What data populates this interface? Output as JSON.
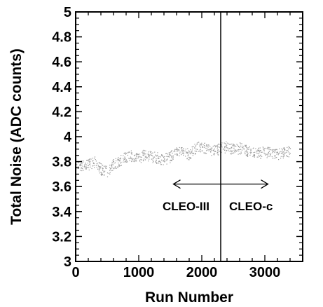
{
  "chart_data": {
    "type": "scatter",
    "title": "",
    "xlabel": "Run Number",
    "ylabel": "Total Noise (ADC counts)",
    "xlim": [
      0,
      3600
    ],
    "ylim": [
      3,
      5
    ],
    "xticks": [
      0,
      1000,
      2000,
      3000
    ],
    "yticks": [
      3,
      3.2,
      3.4,
      3.6,
      3.8,
      4,
      4.2,
      4.4,
      4.6,
      4.8,
      5
    ],
    "ytick_labels": [
      "3",
      "3.2",
      "3.4",
      "3.6",
      "3.8",
      "4",
      "4.2",
      "4.4",
      "4.6",
      "4.8",
      "5"
    ],
    "grid": false,
    "legend": "none",
    "divider_x": 2300,
    "annotations": [
      {
        "text": "CLEO-III",
        "x": 1750,
        "y": 3.41
      },
      {
        "text": "CLEO-c",
        "x": 2780,
        "y": 3.41
      }
    ],
    "arrow": {
      "x_start": 1550,
      "x_end": 3050,
      "y": 3.62
    },
    "series": [
      {
        "x": [
          0,
          100,
          200,
          300,
          400,
          500,
          600,
          700,
          800,
          900,
          1000,
          1100,
          1200,
          1300,
          1400,
          1500,
          1600,
          1700,
          1800,
          1900,
          2000,
          2100,
          2200,
          2300,
          2400,
          2500,
          2600,
          2700,
          2800,
          2900,
          3000,
          3100,
          3200,
          3300
        ],
        "y": [
          3.78,
          3.77,
          3.78,
          3.8,
          3.74,
          3.72,
          3.78,
          3.81,
          3.84,
          3.85,
          3.83,
          3.86,
          3.84,
          3.83,
          3.82,
          3.84,
          3.9,
          3.88,
          3.86,
          3.91,
          3.92,
          3.9,
          3.89,
          3.91,
          3.92,
          3.9,
          3.91,
          3.89,
          3.88,
          3.87,
          3.88,
          3.87,
          3.86,
          3.88
        ],
        "color": "#9a9a9a"
      }
    ]
  }
}
